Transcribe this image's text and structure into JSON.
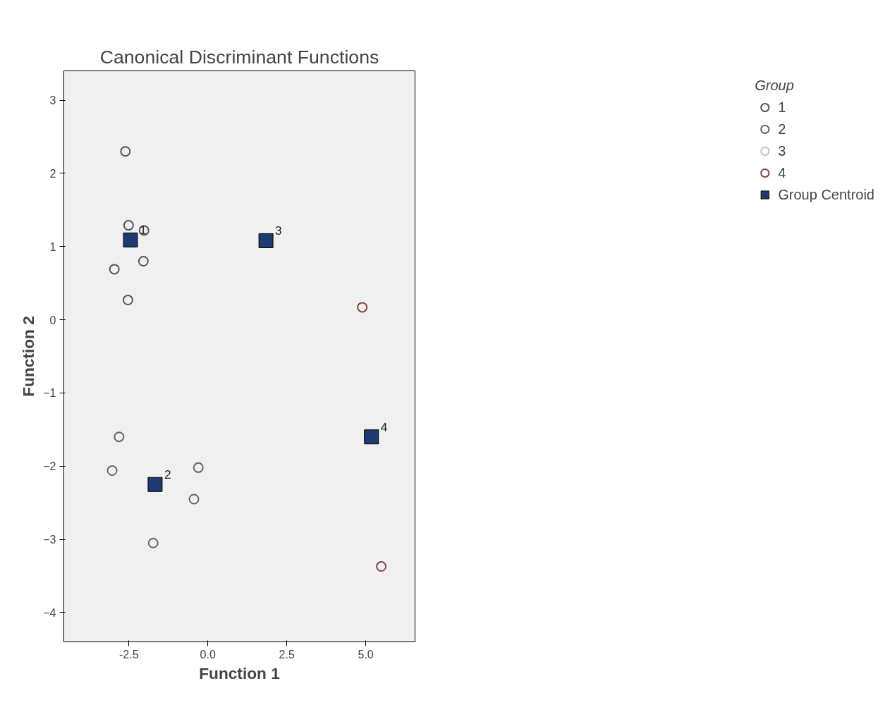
{
  "chart_data": {
    "type": "scatter",
    "title": "Canonical Discriminant Functions",
    "xlabel": "Function 1",
    "ylabel": "Function 2",
    "legend_title": "Group",
    "xlim": [
      -4.56,
      6.56
    ],
    "ylim": [
      -4.4,
      3.4
    ],
    "xticks": [
      {
        "value": -2.5,
        "label": "-2.5"
      },
      {
        "value": 0,
        "label": "0.0"
      },
      {
        "value": 2.5,
        "label": "2.5"
      },
      {
        "value": 5,
        "label": "5.0"
      }
    ],
    "yticks": [
      -4,
      -3,
      -2,
      -1,
      0,
      1,
      2,
      3
    ],
    "grid": false,
    "legend": "right",
    "series": [
      {
        "name": "1",
        "color": "#555555",
        "marker": "circle",
        "x": [
          -2.61,
          -2.51,
          -2.02,
          -2.04,
          -2.96,
          -2.53
        ],
        "values": [
          2.3,
          1.29,
          1.22,
          0.8,
          0.69,
          0.27
        ]
      },
      {
        "name": "2",
        "color": "#666666",
        "marker": "circle",
        "x": [
          -2.81,
          -3.03,
          -0.3,
          -0.44,
          -1.73
        ],
        "values": [
          -1.6,
          -2.06,
          -2.02,
          -2.45,
          -3.05
        ]
      },
      {
        "name": "3",
        "color": "#c4c4c4",
        "marker": "circle"
      },
      {
        "name": "4",
        "color": "#884444",
        "marker": "circle",
        "x": [
          4.89,
          5.49
        ],
        "values": [
          0.17,
          -3.37
        ]
      },
      {
        "name": "Group Centroid",
        "color": "#1f3a6e",
        "marker": "square",
        "x": [
          -2.45,
          -1.67,
          1.84,
          5.18
        ],
        "values": [
          1.09,
          -2.25,
          1.08,
          -1.6
        ]
      }
    ],
    "annotations": [
      {
        "text": "1",
        "x": -2.45,
        "y": 1.09
      },
      {
        "text": "2",
        "x": -1.67,
        "y": -2.25
      },
      {
        "text": "3",
        "x": 1.84,
        "y": 1.08
      },
      {
        "text": "4",
        "x": 5.18,
        "y": -1.6
      }
    ]
  }
}
